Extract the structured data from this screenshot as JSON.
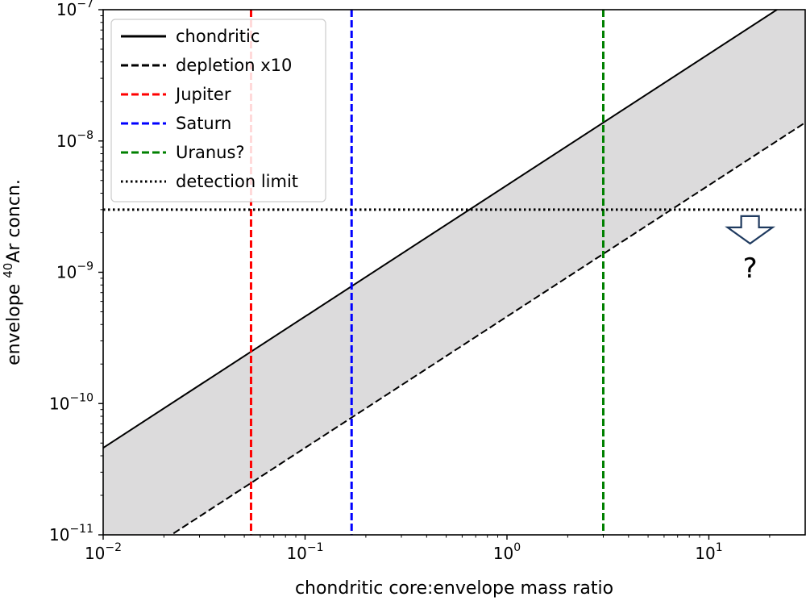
{
  "chart_data": {
    "type": "line",
    "title": "",
    "xlabel": "chondritic core:envelope mass ratio",
    "ylabel": {
      "prefix": "envelope ",
      "sup": "40",
      "suffix": "Ar concn."
    },
    "xscale": "log",
    "yscale": "log",
    "xlim": [
      0.01,
      30
    ],
    "ylim": [
      1e-11,
      1e-07
    ],
    "grid": false,
    "legend_position": "top-left",
    "x_ticks": [
      {
        "value": 0.01,
        "base": "10",
        "exp": "−2"
      },
      {
        "value": 0.1,
        "base": "10",
        "exp": "−1"
      },
      {
        "value": 1,
        "base": "10",
        "exp": "0"
      },
      {
        "value": 10,
        "base": "10",
        "exp": "1"
      }
    ],
    "y_ticks": [
      {
        "value": 1e-11,
        "base": "10",
        "exp": "−11"
      },
      {
        "value": 1e-10,
        "base": "10",
        "exp": "−10"
      },
      {
        "value": 1e-09,
        "base": "10",
        "exp": "−9"
      },
      {
        "value": 1e-08,
        "base": "10",
        "exp": "−8"
      },
      {
        "value": 1e-07,
        "base": "10",
        "exp": "−7"
      }
    ],
    "series": [
      {
        "name": "chondritic",
        "kind": "line",
        "style": "solid",
        "color": "#000000",
        "x": [
          0.01,
          30
        ],
        "y": [
          4.6e-11,
          1.38e-07
        ]
      },
      {
        "name": "depletion x10",
        "kind": "line",
        "style": "dashed",
        "color": "#000000",
        "x": [
          0.01,
          30
        ],
        "y": [
          4.6e-12,
          1.38e-08
        ]
      },
      {
        "name": "Jupiter",
        "kind": "vline",
        "style": "dashed",
        "color": "#ff0000",
        "x": 0.054
      },
      {
        "name": "Saturn",
        "kind": "vline",
        "style": "dashed",
        "color": "#0000ff",
        "x": 0.17
      },
      {
        "name": "Uranus?",
        "kind": "vline",
        "style": "dashed",
        "color": "#008000",
        "x": 3.0
      },
      {
        "name": "detection limit",
        "kind": "hline",
        "style": "dotted",
        "color": "#000000",
        "y": 3e-09
      }
    ],
    "shaded_region": {
      "between": [
        "chondritic",
        "depletion x10"
      ],
      "color": "#dcdbdc"
    },
    "annotations": [
      {
        "text": "?",
        "x": 16,
        "y": 1e-09,
        "arrow": "down-hollow",
        "arrow_color": "#1f3a5f"
      }
    ]
  }
}
